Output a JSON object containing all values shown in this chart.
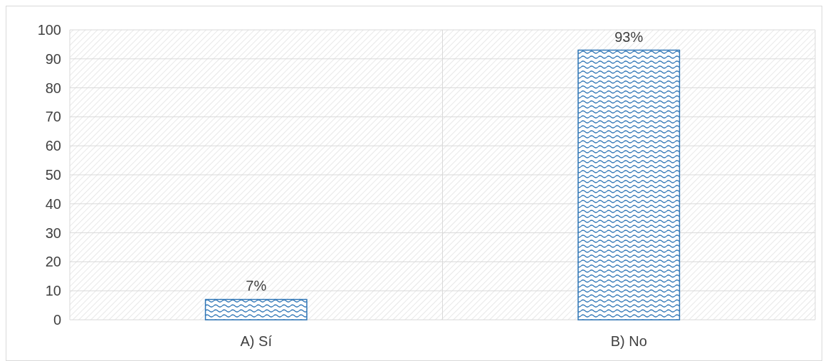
{
  "chart_data": {
    "type": "bar",
    "categories": [
      "A) Sí",
      "B) No"
    ],
    "values": [
      7,
      93
    ],
    "value_labels": [
      "7%",
      "93%"
    ],
    "color": "#2e75b6",
    "ylim": [
      0,
      100
    ],
    "yticks": [
      0,
      10,
      20,
      30,
      40,
      50,
      60,
      70,
      80,
      90,
      100
    ],
    "grid": true
  }
}
